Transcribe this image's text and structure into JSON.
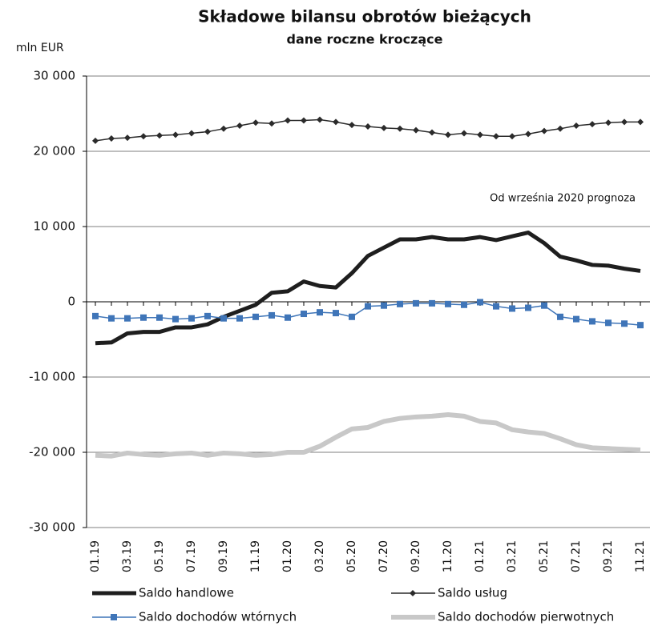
{
  "chart_data": {
    "type": "line",
    "title": "Składowe bilansu obrotów bieżących",
    "subtitle": "dane roczne kroczące",
    "y_label": "mln EUR",
    "annotation": "Od września 2020 prognoza",
    "categories": [
      "01.19",
      null,
      "03.19",
      null,
      "05.19",
      null,
      "07.19",
      null,
      "09.19",
      null,
      "11.19",
      null,
      "01.20",
      null,
      "03.20",
      null,
      "05.20",
      null,
      "07.20",
      null,
      "09.20",
      null,
      "11.20",
      null,
      "01.21",
      null,
      "03.21",
      null,
      "05.21",
      null,
      "07.21",
      null,
      "09.21",
      null,
      "11.21"
    ],
    "series": [
      {
        "name": "Saldo handlowe",
        "color": "#1e1e1e",
        "line_width": 5,
        "marker": null,
        "values": [
          -5500,
          -5400,
          -4200,
          -4000,
          -4000,
          -3400,
          -3400,
          -3000,
          -2000,
          -1200,
          -400,
          1200,
          1400,
          2700,
          2100,
          1900,
          3800,
          6100,
          7200,
          8300,
          8300,
          8600,
          8300,
          8300,
          8600,
          8200,
          8700,
          9200,
          7800,
          6000,
          5500,
          4900,
          4800,
          4400,
          4100
        ]
      },
      {
        "name": "Saldo usług",
        "color": "#2b2b2b",
        "line_width": 1.5,
        "marker": "diamond",
        "values": [
          21400,
          21700,
          21800,
          22000,
          22100,
          22200,
          22400,
          22600,
          23000,
          23400,
          23800,
          23700,
          24100,
          24100,
          24200,
          23900,
          23500,
          23300,
          23100,
          23000,
          22800,
          22500,
          22200,
          22400,
          22200,
          22000,
          22000,
          22300,
          22700,
          23000,
          23400,
          23600,
          23800,
          23900,
          23900
        ]
      },
      {
        "name": "Saldo dochodów wtórnych",
        "color": "#3f75b8",
        "line_width": 1.5,
        "marker": "square",
        "values": [
          -1900,
          -2200,
          -2200,
          -2100,
          -2100,
          -2300,
          -2200,
          -1900,
          -2200,
          -2200,
          -2000,
          -1800,
          -2100,
          -1600,
          -1400,
          -1500,
          -2000,
          -600,
          -500,
          -300,
          -200,
          -200,
          -300,
          -400,
          -50,
          -600,
          -900,
          -800,
          -500,
          -2000,
          -2300,
          -2600,
          -2800,
          -2900,
          -3100
        ]
      },
      {
        "name": "Saldo dochodów pierwotnych",
        "color": "#c8c8c8",
        "line_width": 6,
        "marker": null,
        "values": [
          -20400,
          -20500,
          -20100,
          -20300,
          -20400,
          -20200,
          -20100,
          -20400,
          -20100,
          -20200,
          -20400,
          -20300,
          -20000,
          -20000,
          -19200,
          -18000,
          -16900,
          -16700,
          -15900,
          -15500,
          -15300,
          -15200,
          -15000,
          -15200,
          -15900,
          -16100,
          -17000,
          -17300,
          -17500,
          -18200,
          -19000,
          -19400,
          -19500,
          -19600,
          -19700
        ]
      }
    ],
    "ylim": [
      -30000,
      30000
    ],
    "yticks": [
      {
        "value": -30000,
        "label": "-30 000"
      },
      {
        "value": -20000,
        "label": "-20 000"
      },
      {
        "value": -10000,
        "label": "-10 000"
      },
      0,
      {
        "value": 10000,
        "label": "10 000"
      },
      {
        "value": 20000,
        "label": "20 000"
      },
      {
        "value": 30000,
        "label": "30 000"
      }
    ],
    "grid": true
  }
}
